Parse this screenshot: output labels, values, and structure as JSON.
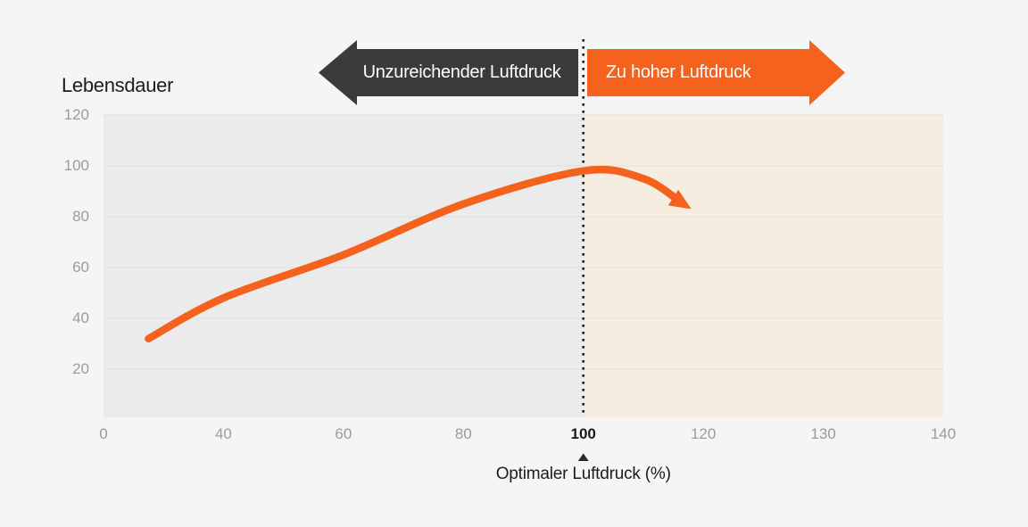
{
  "page": {
    "background": "#f5f5f5"
  },
  "y_axis_title": "Lebensdauer",
  "banners": {
    "left": {
      "label": "Unzureichender Luftdruck",
      "color": "#3b3b3b",
      "text_color": "#ffffff",
      "direction": "left"
    },
    "right": {
      "label": "Zu hoher Luftdruck",
      "color": "#f4621e",
      "text_color": "#ffffff",
      "direction": "right"
    }
  },
  "x_axis_title": "Optimaler Luftdruck (%)",
  "chart_data": {
    "type": "line",
    "title": "",
    "ylabel": "Lebensdauer",
    "xlabel": "Optimaler Luftdruck (%)",
    "ylim": [
      0,
      120
    ],
    "y_ticks": [
      20,
      40,
      60,
      80,
      100,
      120
    ],
    "x_ticks": [
      0,
      40,
      60,
      80,
      100,
      120,
      130,
      140
    ],
    "x_scale": "categorical-even-spacing",
    "highlighted_x_tick": 100,
    "grid": true,
    "grid_color": "rgba(0,0,0,0.05)",
    "regions": [
      {
        "label": "Unzureichender Luftdruck",
        "range": [
          0,
          100
        ],
        "background": "#ebebeb"
      },
      {
        "label": "Zu hoher Luftdruck",
        "range": [
          100,
          140
        ],
        "background": "#f4ede0"
      }
    ],
    "divider": {
      "x": 100,
      "style": "dotted",
      "color": "#1c1c1c"
    },
    "optimum_marker": {
      "x": 100,
      "shape": "triangle-up",
      "color": "#2a2a2a"
    },
    "series": [
      {
        "name": "Lebensdauer",
        "color": "#f4621e",
        "stroke_width": 8.5,
        "arrow_end": true,
        "points": [
          {
            "x": 15,
            "y": 32
          },
          {
            "x": 40,
            "y": 48
          },
          {
            "x": 60,
            "y": 65
          },
          {
            "x": 80,
            "y": 85
          },
          {
            "x": 100,
            "y": 98
          },
          {
            "x": 110,
            "y": 95
          },
          {
            "x": 118,
            "y": 83
          }
        ]
      }
    ],
    "axis_label_color": "#9b9b9b",
    "highlight_label_color": "#191919"
  }
}
